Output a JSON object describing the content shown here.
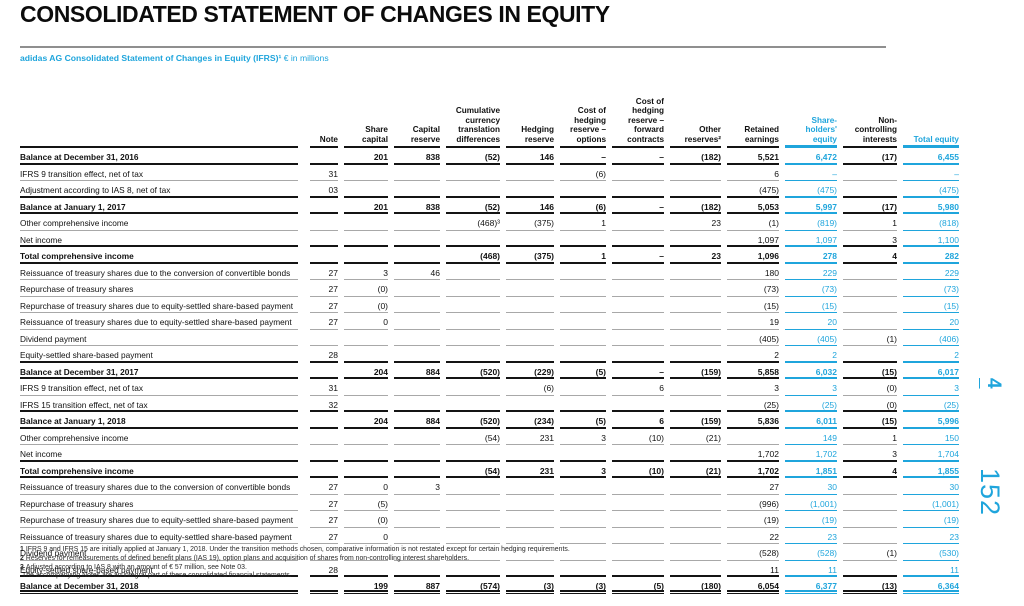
{
  "colors": {
    "accent": "#1fa5dc"
  },
  "document": {
    "title": "CONSOLIDATED STATEMENT OF CHANGES IN EQUITY",
    "subtitle": "adidas AG Consolidated Statement of Changes in Equity (IFRS)¹",
    "subtitle_unit": " € in millions",
    "side": {
      "section_number": "4",
      "page_number": "152"
    }
  },
  "table": {
    "columns": [
      {
        "key": "label",
        "label": ""
      },
      {
        "key": "note",
        "label": "Note"
      },
      {
        "key": "share-capital",
        "label": "Share\ncapital"
      },
      {
        "key": "capital-reserve",
        "label": "Capital\nreserve"
      },
      {
        "key": "cumulative-currency-translation-differences",
        "label": "Cumulative\ncurrency\ntranslation\ndifferences"
      },
      {
        "key": "hedging-reserve",
        "label": "Hedging\nreserve"
      },
      {
        "key": "cost-of-hedging-reserve-options",
        "label": "Cost of\nhedging\nreserve –\noptions"
      },
      {
        "key": "cost-of-hedging-reserve-forward-contracts",
        "label": "Cost of\nhedging\nreserve –\nforward\ncontracts"
      },
      {
        "key": "other-reserves",
        "label": "Other\nreserves²"
      },
      {
        "key": "retained-earnings",
        "label": "Retained\nearnings"
      },
      {
        "key": "shareholders-equity",
        "label": "Share-\nholders'\nequity",
        "cyan": true
      },
      {
        "key": "non-controlling-interests",
        "label": "Non-\ncontrolling\ninterests"
      },
      {
        "key": "total-equity",
        "label": "Total equity",
        "cyan": true
      }
    ],
    "rows": [
      {
        "label": "Balance at December 31, 2016",
        "bold": true,
        "values": [
          "",
          "201",
          "838",
          "(52)",
          "146",
          "–",
          "–",
          "(182)",
          "5,521",
          "6,472",
          "(17)",
          "6,455"
        ]
      },
      {
        "label": "IFRS 9 transition effect, net of tax",
        "bold": false,
        "values": [
          "31",
          "",
          "",
          "",
          "",
          "(6)",
          "",
          "",
          "6",
          "–",
          "",
          "–"
        ]
      },
      {
        "label": "Adjustment according to IAS 8, net of tax",
        "bold": false,
        "values": [
          "03",
          "",
          "",
          "",
          "",
          "",
          "",
          "",
          "(475)",
          "(475)",
          "",
          "(475)"
        ]
      },
      {
        "label": "Balance at January 1, 2017",
        "bold": true,
        "values": [
          "",
          "201",
          "838",
          "(52)",
          "146",
          "(6)",
          "–",
          "(182)",
          "5,053",
          "5,997",
          "(17)",
          "5,980"
        ]
      },
      {
        "label": "Other comprehensive income",
        "bold": false,
        "values": [
          "",
          "",
          "",
          "(468)³",
          "(375)",
          "1",
          "",
          "23",
          "(1)",
          "(819)",
          "1",
          "(818)"
        ]
      },
      {
        "label": "Net income",
        "bold": false,
        "values": [
          "",
          "",
          "",
          "",
          "",
          "",
          "",
          "",
          "1,097",
          "1,097",
          "3",
          "1,100"
        ]
      },
      {
        "label": "Total comprehensive income",
        "bold": true,
        "values": [
          "",
          "",
          "",
          "(468)",
          "(375)",
          "1",
          "–",
          "23",
          "1,096",
          "278",
          "4",
          "282"
        ]
      },
      {
        "label": "Reissuance of treasury shares due to the conversion of convertible bonds",
        "bold": false,
        "values": [
          "27",
          "3",
          "46",
          "",
          "",
          "",
          "",
          "",
          "180",
          "229",
          "",
          "229"
        ]
      },
      {
        "label": "Repurchase of treasury shares",
        "bold": false,
        "values": [
          "27",
          "(0)",
          "",
          "",
          "",
          "",
          "",
          "",
          "(73)",
          "(73)",
          "",
          "(73)"
        ]
      },
      {
        "label": "Repurchase of treasury shares due to equity-settled share-based payment",
        "bold": false,
        "values": [
          "27",
          "(0)",
          "",
          "",
          "",
          "",
          "",
          "",
          "(15)",
          "(15)",
          "",
          "(15)"
        ]
      },
      {
        "label": "Reissuance of treasury shares due to equity-settled share-based payment",
        "bold": false,
        "values": [
          "27",
          "0",
          "",
          "",
          "",
          "",
          "",
          "",
          "19",
          "20",
          "",
          "20"
        ]
      },
      {
        "label": "Dividend payment",
        "bold": false,
        "values": [
          "",
          "",
          "",
          "",
          "",
          "",
          "",
          "",
          "(405)",
          "(405)",
          "(1)",
          "(406)"
        ]
      },
      {
        "label": "Equity-settled share-based payment",
        "bold": false,
        "values": [
          "28",
          "",
          "",
          "",
          "",
          "",
          "",
          "",
          "2",
          "2",
          "",
          "2"
        ]
      },
      {
        "label": "Balance at December 31, 2017",
        "bold": true,
        "values": [
          "",
          "204",
          "884",
          "(520)",
          "(229)",
          "(5)",
          "–",
          "(159)",
          "5,858",
          "6,032",
          "(15)",
          "6,017"
        ]
      },
      {
        "label": "IFRS 9 transition effect, net of tax",
        "bold": false,
        "values": [
          "31",
          "",
          "",
          "",
          "(6)",
          "",
          "6",
          "",
          "3",
          "3",
          "(0)",
          "3"
        ]
      },
      {
        "label": "IFRS 15 transition effect, net of tax",
        "bold": false,
        "values": [
          "32",
          "",
          "",
          "",
          "",
          "",
          "",
          "",
          "(25)",
          "(25)",
          "(0)",
          "(25)"
        ]
      },
      {
        "label": "Balance at January 1, 2018",
        "bold": true,
        "values": [
          "",
          "204",
          "884",
          "(520)",
          "(234)",
          "(5)",
          "6",
          "(159)",
          "5,836",
          "6,011",
          "(15)",
          "5,996"
        ]
      },
      {
        "label": "Other comprehensive income",
        "bold": false,
        "values": [
          "",
          "",
          "",
          "(54)",
          "231",
          "3",
          "(10)",
          "(21)",
          "",
          "149",
          "1",
          "150"
        ]
      },
      {
        "label": "Net income",
        "bold": false,
        "values": [
          "",
          "",
          "",
          "",
          "",
          "",
          "",
          "",
          "1,702",
          "1,702",
          "3",
          "1,704"
        ]
      },
      {
        "label": "Total comprehensive income",
        "bold": true,
        "values": [
          "",
          "",
          "",
          "(54)",
          "231",
          "3",
          "(10)",
          "(21)",
          "1,702",
          "1,851",
          "4",
          "1,855"
        ]
      },
      {
        "label": "Reissuance of treasury shares due to the conversion of convertible bonds",
        "bold": false,
        "values": [
          "27",
          "0",
          "3",
          "",
          "",
          "",
          "",
          "",
          "27",
          "30",
          "",
          "30"
        ]
      },
      {
        "label": "Repurchase of treasury shares",
        "bold": false,
        "values": [
          "27",
          "(5)",
          "",
          "",
          "",
          "",
          "",
          "",
          "(996)",
          "(1,001)",
          "",
          "(1,001)"
        ]
      },
      {
        "label": "Repurchase of treasury shares due to equity-settled share-based payment",
        "bold": false,
        "values": [
          "27",
          "(0)",
          "",
          "",
          "",
          "",
          "",
          "",
          "(19)",
          "(19)",
          "",
          "(19)"
        ]
      },
      {
        "label": "Reissuance of treasury shares due to equity-settled share-based payment",
        "bold": false,
        "values": [
          "27",
          "0",
          "",
          "",
          "",
          "",
          "",
          "",
          "22",
          "23",
          "",
          "23"
        ]
      },
      {
        "label": "Dividend payment",
        "bold": false,
        "values": [
          "",
          "",
          "",
          "",
          "",
          "",
          "",
          "",
          "(528)",
          "(528)",
          "(1)",
          "(530)"
        ]
      },
      {
        "label": "Equity-settled share-based payment",
        "bold": false,
        "values": [
          "28",
          "",
          "",
          "",
          "",
          "",
          "",
          "",
          "11",
          "11",
          "",
          "11"
        ]
      },
      {
        "label": "Balance at December 31, 2018",
        "bold": true,
        "values": [
          "",
          "199",
          "887",
          "(574)",
          "(3)",
          "(3)",
          "(5)",
          "(180)",
          "6,054",
          "6,377",
          "(13)",
          "6,364"
        ]
      }
    ]
  },
  "footnotes": [
    {
      "marker": "1",
      "text": "IFRS 9 and IFRS 15 are initially applied at January 1, 2018. Under the transition methods chosen, comparative information is not restated except for certain hedging requirements."
    },
    {
      "marker": "2",
      "text": "Reserves for remeasurements of defined benefit plans (IAS 19), option plans and acquisition of shares from non-controlling interest shareholders."
    },
    {
      "marker": "3",
      "text": "Adjusted according to IAS 8 with an amount of € 57 million, see Note 03."
    },
    {
      "marker": "",
      "text": "The accompanying Notes are an integral part of these consolidated financial statements."
    }
  ]
}
